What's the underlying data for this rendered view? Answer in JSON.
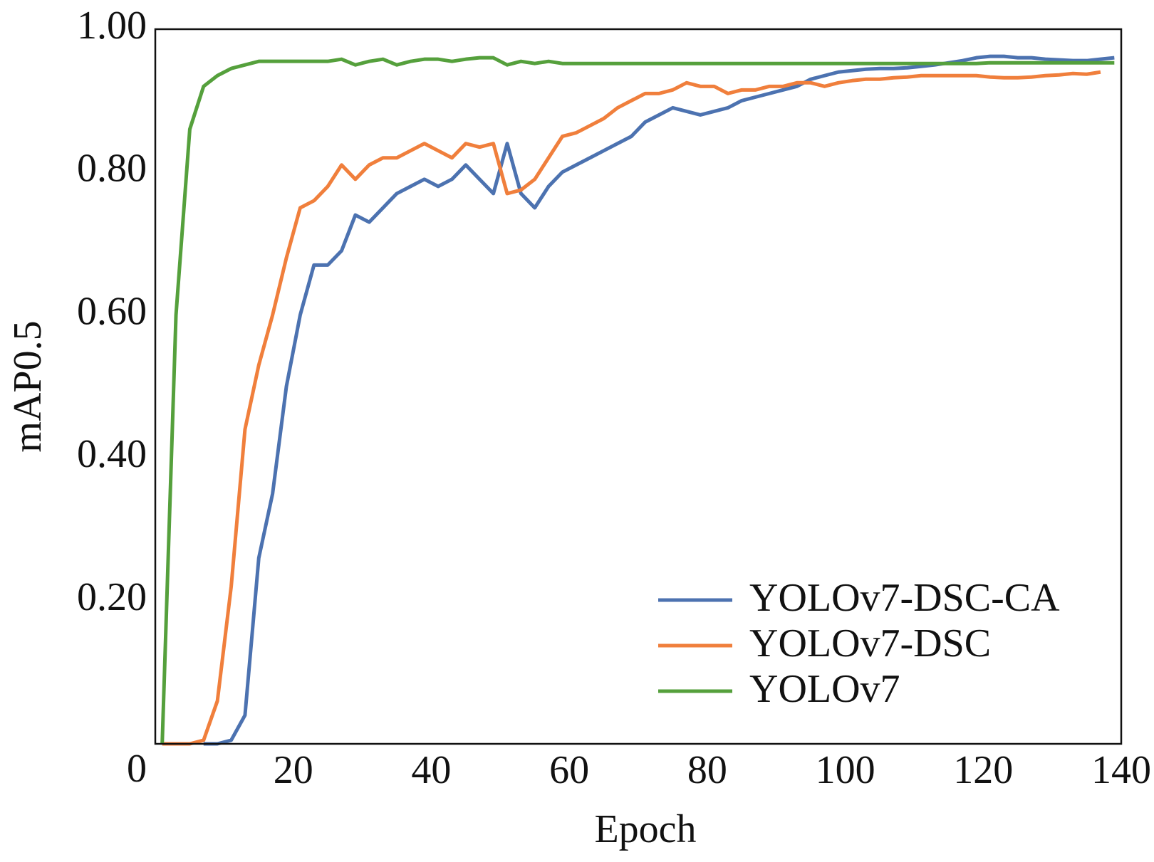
{
  "chart_data": {
    "type": "line",
    "xlabel": "Epoch",
    "ylabel": "mAP0.5",
    "x": [
      1,
      3,
      5,
      7,
      9,
      11,
      13,
      15,
      17,
      19,
      21,
      23,
      25,
      27,
      29,
      31,
      33,
      35,
      37,
      39,
      41,
      43,
      45,
      47,
      49,
      51,
      53,
      55,
      57,
      59,
      61,
      63,
      65,
      67,
      69,
      71,
      73,
      75,
      77,
      79,
      81,
      83,
      85,
      87,
      89,
      91,
      93,
      95,
      97,
      99,
      101,
      103,
      105,
      107,
      109,
      111,
      113,
      115,
      117,
      119,
      121,
      123,
      125,
      127,
      129,
      131,
      133,
      135,
      137,
      139
    ],
    "series": [
      {
        "name": "YOLOv7-DSC-CA",
        "color": "#4c72b0",
        "values": [
          null,
          null,
          null,
          0,
          0,
          0.005,
          0.04,
          0.26,
          0.35,
          0.5,
          0.6,
          0.67,
          0.67,
          0.69,
          0.74,
          0.73,
          0.75,
          0.77,
          0.78,
          0.79,
          0.78,
          0.79,
          0.81,
          0.79,
          0.77,
          0.84,
          0.77,
          0.75,
          0.78,
          0.8,
          0.81,
          0.82,
          0.83,
          0.84,
          0.85,
          0.87,
          0.88,
          0.89,
          0.885,
          0.88,
          0.885,
          0.89,
          0.9,
          0.905,
          0.91,
          0.915,
          0.92,
          0.93,
          0.935,
          0.94,
          0.942,
          0.944,
          0.945,
          0.945,
          0.946,
          0.948,
          0.95,
          0.953,
          0.956,
          0.96,
          0.962,
          0.962,
          0.96,
          0.96,
          0.958,
          0.957,
          0.956,
          0.956,
          0.958,
          0.96
        ]
      },
      {
        "name": "YOLOv7-DSC",
        "color": "#f07f3c",
        "values": [
          0,
          0,
          0,
          0.005,
          0.06,
          0.22,
          0.44,
          0.53,
          0.6,
          0.68,
          0.75,
          0.76,
          0.78,
          0.81,
          0.79,
          0.81,
          0.82,
          0.82,
          0.83,
          0.84,
          0.83,
          0.82,
          0.84,
          0.835,
          0.84,
          0.77,
          0.775,
          0.79,
          0.82,
          0.85,
          0.855,
          0.865,
          0.875,
          0.89,
          0.9,
          0.91,
          0.91,
          0.915,
          0.925,
          0.92,
          0.92,
          0.91,
          0.915,
          0.915,
          0.92,
          0.92,
          0.925,
          0.925,
          0.92,
          0.925,
          0.928,
          0.93,
          0.93,
          0.932,
          0.933,
          0.935,
          0.935,
          0.935,
          0.935,
          0.935,
          0.933,
          0.932,
          0.932,
          0.933,
          0.935,
          0.936,
          0.938,
          0.937,
          0.94,
          null
        ]
      },
      {
        "name": "YOLOv7",
        "color": "#55a03c",
        "values": [
          0,
          0.6,
          0.86,
          0.92,
          0.935,
          0.945,
          0.95,
          0.955,
          0.955,
          0.955,
          0.955,
          0.955,
          0.955,
          0.958,
          0.95,
          0.955,
          0.958,
          0.95,
          0.955,
          0.958,
          0.958,
          0.955,
          0.958,
          0.96,
          0.96,
          0.95,
          0.955,
          0.952,
          0.955,
          0.952,
          0.952,
          0.952,
          0.952,
          0.952,
          0.952,
          0.952,
          0.952,
          0.952,
          0.952,
          0.952,
          0.952,
          0.952,
          0.952,
          0.952,
          0.952,
          0.952,
          0.952,
          0.952,
          0.952,
          0.952,
          0.952,
          0.952,
          0.952,
          0.952,
          0.952,
          0.952,
          0.952,
          0.952,
          0.952,
          0.952,
          0.953,
          0.953,
          0.953,
          0.953,
          0.953,
          0.953,
          0.953,
          0.953,
          0.953,
          0.953
        ]
      }
    ],
    "xlim": [
      0,
      140
    ],
    "xticks": [
      20,
      40,
      60,
      80,
      100,
      120,
      140
    ],
    "ylim": [
      0,
      1
    ],
    "yticks": [
      {
        "value": 0,
        "label": "0"
      },
      {
        "value": 0.2,
        "label": "0.20"
      },
      {
        "value": 0.4,
        "label": "0.40"
      },
      {
        "value": 0.6,
        "label": "0.60"
      },
      {
        "value": 0.8,
        "label": "0.80"
      },
      {
        "value": 1,
        "label": "1.00"
      }
    ],
    "grid": false,
    "legend": "lower right"
  }
}
